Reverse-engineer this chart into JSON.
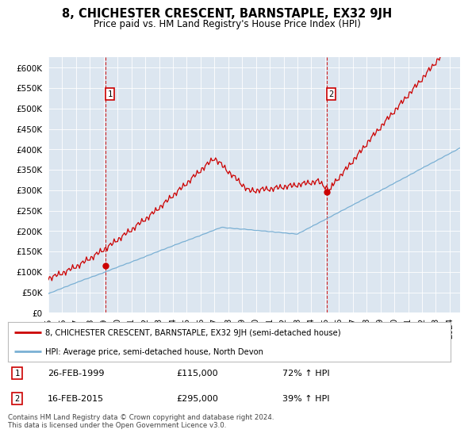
{
  "title": "8, CHICHESTER CRESCENT, BARNSTAPLE, EX32 9JH",
  "subtitle": "Price paid vs. HM Land Registry's House Price Index (HPI)",
  "background_color": "#ffffff",
  "plot_background": "#dce6f0",
  "ylim": [
    0,
    625000
  ],
  "yticks": [
    0,
    50000,
    100000,
    150000,
    200000,
    250000,
    300000,
    350000,
    400000,
    450000,
    500000,
    550000,
    600000
  ],
  "xlim_start": 1995.0,
  "xlim_end": 2024.75,
  "xticks": [
    1995,
    1996,
    1997,
    1998,
    1999,
    2000,
    2001,
    2002,
    2003,
    2004,
    2005,
    2006,
    2007,
    2008,
    2009,
    2010,
    2011,
    2012,
    2013,
    2014,
    2015,
    2016,
    2017,
    2018,
    2019,
    2020,
    2021,
    2022,
    2023,
    2024
  ],
  "sale1_x": 1999.13,
  "sale1_y": 115000,
  "sale1_label": "1",
  "sale1_date": "26-FEB-1999",
  "sale1_price": "£115,000",
  "sale1_hpi": "72% ↑ HPI",
  "sale2_x": 2015.12,
  "sale2_y": 295000,
  "sale2_label": "2",
  "sale2_date": "16-FEB-2015",
  "sale2_price": "£295,000",
  "sale2_hpi": "39% ↑ HPI",
  "hpi_line_color": "#7ab0d4",
  "price_line_color": "#cc0000",
  "vline_color": "#cc0000",
  "marker_color": "#cc0000",
  "legend_label_price": "8, CHICHESTER CRESCENT, BARNSTAPLE, EX32 9JH (semi-detached house)",
  "legend_label_hpi": "HPI: Average price, semi-detached house, North Devon",
  "footnote": "Contains HM Land Registry data © Crown copyright and database right 2024.\nThis data is licensed under the Open Government Licence v3.0."
}
